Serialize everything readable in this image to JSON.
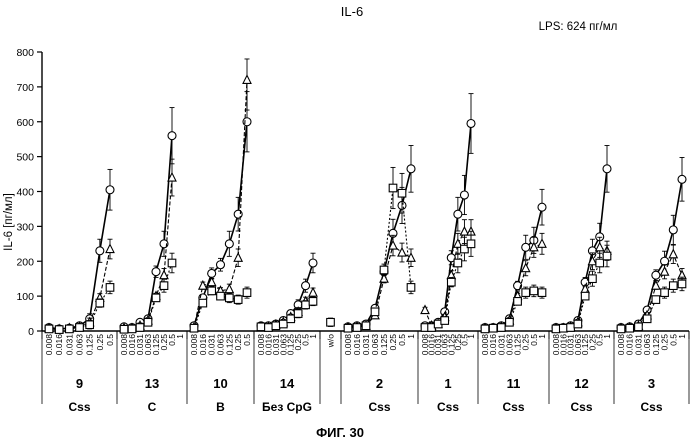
{
  "chart_data": {
    "type": "line",
    "title": "IL-6",
    "annotation": "LPS: 624 пг/мл",
    "ylabel": "IL-6 [пг/мл]",
    "ylim": [
      0,
      800
    ],
    "yticks": [
      0,
      100,
      200,
      300,
      400,
      500,
      600,
      700,
      800
    ],
    "grid": false,
    "legend": "none",
    "caption": "ФИГ. 30",
    "doses": [
      "0.008",
      "0.016",
      "0.031",
      "0.063",
      "0.125",
      "0.25",
      "0.5",
      "1"
    ],
    "groups": [
      {
        "id": "9",
        "label": "Css",
        "doses": [
          "0.008",
          "0.016",
          "0.031",
          "0.063",
          "0.125",
          "0.25",
          "0.5"
        ],
        "series": [
          {
            "marker": "circle",
            "values": [
              10,
              6,
              8,
              15,
              35,
              230,
              405
            ]
          },
          {
            "marker": "triangle",
            "values": [
              8,
              5,
              8,
              12,
              25,
              95,
              235
            ]
          },
          {
            "marker": "square",
            "values": [
              6,
              4,
              6,
              10,
              18,
              80,
              125
            ]
          }
        ]
      },
      {
        "id": "13",
        "label": "C",
        "doses": [
          "0.008",
          "0.016",
          "0.031",
          "0.063",
          "0.125",
          "0.25",
          "0.5",
          "1"
        ],
        "series": [
          {
            "marker": "circle",
            "values": [
              12,
              10,
              25,
              35,
              170,
              250,
              560
            ]
          },
          {
            "marker": "triangle",
            "values": [
              8,
              8,
              15,
              30,
              100,
              160,
              440
            ]
          },
          {
            "marker": "square",
            "values": [
              5,
              6,
              10,
              25,
              95,
              130,
              195
            ]
          }
        ]
      },
      {
        "id": "10",
        "label": "B",
        "doses": [
          "0.008",
          "0.016",
          "0.031",
          "0.063",
          "0.125",
          "0.25",
          "0.5"
        ],
        "series": [
          {
            "marker": "circle",
            "values": [
              15,
              95,
              165,
              190,
              250,
              335,
              600
            ]
          },
          {
            "marker": "triangle",
            "values": [
              10,
              130,
              140,
              115,
              120,
              210,
              720
            ]
          },
          {
            "marker": "square",
            "values": [
              8,
              80,
              115,
              100,
              95,
              90,
              110
            ]
          }
        ]
      },
      {
        "id": "14",
        "label": "Без CpG",
        "doses": [
          "0.008",
          "0.016",
          "0.031",
          "0.063",
          "0.125",
          "0.25",
          "0.5",
          "1"
        ],
        "series": [
          {
            "marker": "circle",
            "values": [
              15,
              15,
              20,
              30,
              50,
              75,
              130,
              195
            ]
          },
          {
            "marker": "triangle",
            "values": [
              10,
              12,
              18,
              25,
              40,
              55,
              85,
              110
            ]
          },
          {
            "marker": "square",
            "values": [
              12,
              10,
              15,
              20,
              35,
              50,
              75,
              85
            ]
          }
        ]
      },
      {
        "id": "wo",
        "label": "",
        "doses": [
          "w/o"
        ],
        "series": [
          {
            "marker": "square",
            "values": [
              25
            ]
          }
        ]
      },
      {
        "id": "2",
        "label": "Css",
        "doses": [
          "0.008",
          "0.016",
          "0.031",
          "0.063",
          "0.125",
          "0.25",
          "0.5",
          "1"
        ],
        "series": [
          {
            "marker": "circle",
            "values": [
              12,
              15,
              20,
              65,
              170,
              280,
              360,
              465
            ]
          },
          {
            "marker": "triangle",
            "values": [
              10,
              12,
              15,
              45,
              150,
              245,
              225,
              210
            ]
          },
          {
            "marker": "square",
            "values": [
              8,
              10,
              15,
              55,
              175,
              410,
              395,
              125
            ]
          }
        ]
      },
      {
        "id": "1",
        "label": "Css",
        "doses": [
          "0.008",
          "0.016",
          "0.031",
          "0.063",
          "0.125",
          "0.25",
          "0.5",
          "1"
        ],
        "series": [
          {
            "marker": "circle",
            "values": [
              15,
              15,
              25,
              55,
              210,
              335,
              390,
              595
            ]
          },
          {
            "marker": "triangle",
            "values": [
              60,
              15,
              20,
              40,
              160,
              250,
              285,
              285
            ]
          },
          {
            "marker": "square",
            "values": [
              10,
              10,
              20,
              30,
              140,
              195,
              235,
              250
            ]
          }
        ]
      },
      {
        "id": "11",
        "label": "Css",
        "doses": [
          "0.008",
          "0.016",
          "0.031",
          "0.063",
          "0.125",
          "0.25",
          "0.5",
          "1"
        ],
        "series": [
          {
            "marker": "circle",
            "values": [
              10,
              10,
              15,
              35,
              130,
              240,
              260,
              355
            ]
          },
          {
            "marker": "triangle",
            "values": [
              8,
              8,
              12,
              30,
              100,
              180,
              240,
              250
            ]
          },
          {
            "marker": "square",
            "values": [
              6,
              8,
              10,
              25,
              85,
              110,
              115,
              110
            ]
          }
        ]
      },
      {
        "id": "12",
        "label": "Css",
        "doses": [
          "0.008",
          "0.016",
          "0.031",
          "0.063",
          "0.125",
          "0.25",
          "0.5",
          "1"
        ],
        "series": [
          {
            "marker": "circle",
            "values": [
              10,
              10,
              15,
              30,
              140,
              230,
              270,
              465
            ]
          },
          {
            "marker": "triangle",
            "values": [
              8,
              8,
              12,
              25,
              120,
              200,
              240,
              230
            ]
          },
          {
            "marker": "square",
            "values": [
              6,
              8,
              10,
              20,
              100,
              150,
              195,
              215
            ]
          }
        ]
      },
      {
        "id": "3",
        "label": "Css",
        "doses": [
          "0.008",
          "0.016",
          "0.031",
          "0.063",
          "0.125",
          "0.25",
          "0.5",
          "1"
        ],
        "series": [
          {
            "marker": "circle",
            "values": [
              10,
              12,
              20,
              60,
              160,
              200,
              290,
              435
            ]
          },
          {
            "marker": "triangle",
            "values": [
              8,
              10,
              15,
              45,
              130,
              170,
              220,
              160
            ]
          },
          {
            "marker": "square",
            "values": [
              6,
              8,
              12,
              35,
              90,
              110,
              130,
              135
            ]
          }
        ]
      }
    ]
  }
}
